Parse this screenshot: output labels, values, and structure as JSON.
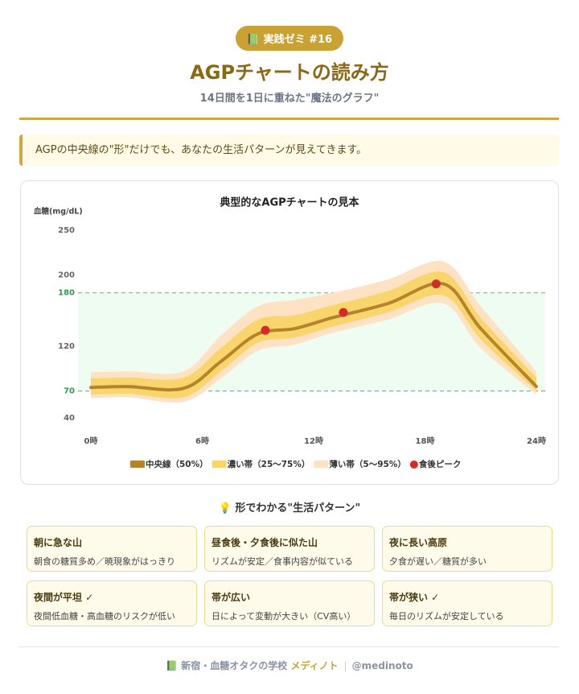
{
  "header": {
    "badge": "📗 実践ゼミ #16",
    "title": "AGPチャートの読み方",
    "subtitle": "14日間を1日に重ねた\"魔法のグラフ\""
  },
  "callout": "AGPの中央線の\"形\"だけでも、あなたの生活パターンが見えてきます。",
  "chart_data": {
    "type": "band-line",
    "title": "典型的なAGPチャートの見本",
    "y_label": "血糖(mg/dL)",
    "x": [
      0,
      2,
      5,
      7,
      9,
      11,
      13,
      16,
      19,
      21,
      24
    ],
    "xlim": [
      0,
      24
    ],
    "xticks": [
      {
        "value": 0,
        "label": "0時"
      },
      {
        "value": 6,
        "label": "6時"
      },
      {
        "value": 12,
        "label": "12時"
      },
      {
        "value": 18,
        "label": "18時"
      },
      {
        "value": 24,
        "label": "24時"
      }
    ],
    "ylim": [
      30,
      260
    ],
    "yticks": [
      40,
      70,
      120,
      180,
      200,
      250
    ],
    "target_range": [
      70,
      180
    ],
    "target_color": "#2e9a4e",
    "series": [
      {
        "name": "薄い帯（5〜95%）",
        "color": "#fde3c4",
        "lower": [
          62,
          63,
          58,
          84,
          115,
          122,
          135,
          150,
          168,
          118,
          66
        ],
        "upper": [
          91,
          92,
          92,
          132,
          165,
          172,
          180,
          195,
          215,
          165,
          92
        ]
      },
      {
        "name": "濃い帯（25〜75%）",
        "color": "#f9d56e",
        "lower": [
          66,
          67,
          63,
          92,
          124,
          130,
          142,
          158,
          177,
          128,
          70
        ],
        "upper": [
          84,
          85,
          85,
          118,
          150,
          155,
          166,
          182,
          203,
          152,
          85
        ]
      },
      {
        "name": "中央線（50%）",
        "color": "#b5842a",
        "values": [
          74,
          75,
          73,
          103,
          134,
          140,
          152,
          168,
          190,
          140,
          75
        ]
      }
    ],
    "peaks": {
      "name": "食後ピーク",
      "color": "#d42a2a",
      "x": [
        9.4,
        13.6,
        18.6
      ],
      "values": [
        138,
        158,
        190
      ]
    }
  },
  "patterns": {
    "title": "💡 形でわかる\"生活パターン\"",
    "cards": [
      {
        "title": "朝に急な山",
        "text": "朝食の糖質多め／暁現象がはっきり"
      },
      {
        "title": "昼食後・夕食後に似た山",
        "text": "リズムが安定／食事内容が似ている"
      },
      {
        "title": "夜に長い高原",
        "text": "夕食が遅い／糖質が多い"
      },
      {
        "title": "夜間が平坦 ✓",
        "text": "夜間低血糖・高血糖のリスクが低い"
      },
      {
        "title": "帯が広い",
        "text": "日によって変動が大きい（CV高い）"
      },
      {
        "title": "帯が狭い ✓",
        "text": "毎日のリズムが安定している"
      }
    ]
  },
  "footer": {
    "school": "📗 新宿・血糖オタクの学校",
    "brand": "メディノト",
    "handle": "@medinoto"
  }
}
